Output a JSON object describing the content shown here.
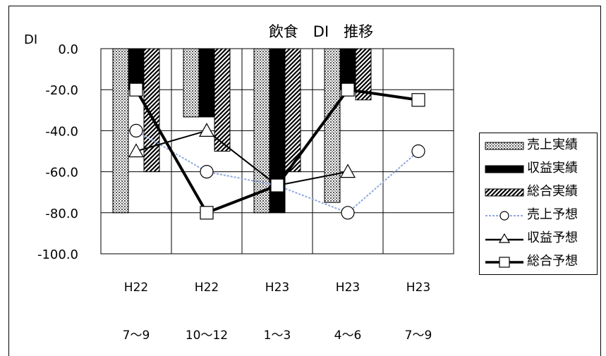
{
  "chart_data": {
    "type": "bar",
    "title": "飲食　DI　推移",
    "ylabel": "DI",
    "xlabel": "",
    "ylim": [
      -100,
      0
    ],
    "yticks": [
      "0.0",
      "-20.0",
      "-40.0",
      "-60.0",
      "-80.0",
      "-100.0"
    ],
    "grid": true,
    "legend_position": "right",
    "categories": [
      {
        "line1": "H22",
        "line2": "7〜9"
      },
      {
        "line1": "H22",
        "line2": "10〜12"
      },
      {
        "line1": "H23",
        "line2": "1〜3"
      },
      {
        "line1": "H23",
        "line2": "4〜6"
      },
      {
        "line1": "H23",
        "line2": "7〜9"
      }
    ],
    "bar_series": [
      {
        "name": "売上実績",
        "pattern": "dots",
        "values": [
          -80,
          -33.3,
          -80,
          -75,
          null
        ]
      },
      {
        "name": "収益実績",
        "pattern": "solid",
        "values": [
          -20,
          -33.3,
          -80,
          -20,
          null
        ]
      },
      {
        "name": "総合実績",
        "pattern": "diagonal",
        "values": [
          -60,
          -50,
          -60,
          -25,
          null
        ]
      }
    ],
    "line_series": [
      {
        "name": "売上予想",
        "marker": "circle",
        "color": "#8fa8e0",
        "dashed": true,
        "width": 2,
        "values": [
          -40,
          -60,
          -66.7,
          -80,
          -50
        ]
      },
      {
        "name": "収益予想",
        "marker": "triangle",
        "color": "#000000",
        "dashed": false,
        "width": 2,
        "values": [
          -50,
          -40,
          -66.7,
          -60,
          null
        ]
      },
      {
        "name": "総合予想",
        "marker": "square",
        "color": "#000000",
        "dashed": false,
        "width": 4,
        "values": [
          -20,
          -80,
          -66.7,
          -20,
          -25
        ]
      }
    ]
  }
}
